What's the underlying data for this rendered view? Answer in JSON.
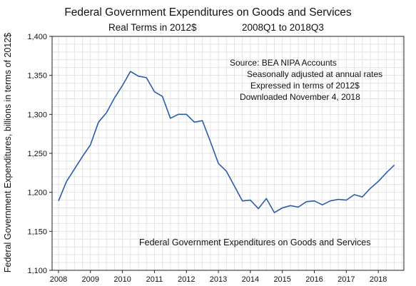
{
  "chart_data": {
    "type": "line",
    "title": "Federal Government Expenditures on Goods and Services",
    "subtitle_left": "Real Terms in 2012$",
    "subtitle_right": "2008Q1 to 2018Q3",
    "ylabel": "Federal Government Expenditures, billions in terms of 2012$",
    "xlabel": "",
    "ylim": [
      1100,
      1400
    ],
    "yticks": [
      "1,100",
      "1,150",
      "1,200",
      "1,250",
      "1,300",
      "1,350",
      "1,400"
    ],
    "ytick_values": [
      1100,
      1150,
      1200,
      1250,
      1300,
      1350,
      1400
    ],
    "xlim": [
      2007.8,
      2018.8
    ],
    "xticks": [
      "2008",
      "2009",
      "2010",
      "2011",
      "2012",
      "2013",
      "2014",
      "2015",
      "2016",
      "2017",
      "2018"
    ],
    "xtick_values": [
      2008,
      2009,
      2010,
      2011,
      2012,
      2013,
      2014,
      2015,
      2016,
      2017,
      2018
    ],
    "grid": true,
    "legend_position": "bottom-center",
    "source_notes": [
      "Source:  BEA NIPA Accounts",
      "Seasonally adjusted at annual rates",
      "Expressed in terms of 2012$",
      "Downloaded November 4, 2018"
    ],
    "series": [
      {
        "name": "Federal Government Expenditures on Goods and Services",
        "color": "#2a5caa",
        "x": [
          2008.0,
          2008.25,
          2008.5,
          2008.75,
          2009.0,
          2009.25,
          2009.5,
          2009.75,
          2010.0,
          2010.25,
          2010.5,
          2010.75,
          2011.0,
          2011.25,
          2011.5,
          2011.75,
          2012.0,
          2012.25,
          2012.5,
          2012.75,
          2013.0,
          2013.25,
          2013.5,
          2013.75,
          2014.0,
          2014.25,
          2014.5,
          2014.75,
          2015.0,
          2015.25,
          2015.5,
          2015.75,
          2016.0,
          2016.25,
          2016.5,
          2016.75,
          2017.0,
          2017.25,
          2017.5,
          2017.75,
          2018.0,
          2018.25,
          2018.5
        ],
        "y": [
          1189,
          1214,
          1230,
          1246,
          1261,
          1290,
          1302,
          1321,
          1337,
          1355,
          1349,
          1347,
          1329,
          1323,
          1295,
          1300,
          1300,
          1290,
          1292,
          1265,
          1237,
          1227,
          1208,
          1189,
          1190,
          1179,
          1192,
          1174,
          1180,
          1183,
          1181,
          1188,
          1189,
          1184,
          1189,
          1191,
          1190,
          1197,
          1194,
          1205,
          1214,
          1225,
          1235
        ]
      }
    ]
  }
}
